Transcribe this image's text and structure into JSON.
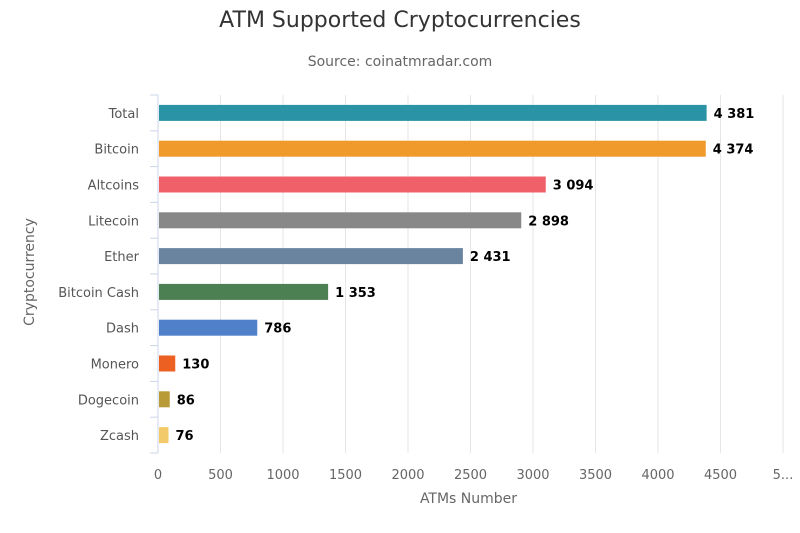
{
  "chart_data": {
    "type": "bar",
    "orientation": "horizontal",
    "title": "ATM Supported Cryptocurrencies",
    "subtitle": "Source: coinatmradar.com",
    "xlabel": "ATMs Number",
    "ylabel": "Cryptocurrency",
    "xlim": [
      0,
      5000
    ],
    "x_ticks": [
      "0",
      "500",
      "1000",
      "1500",
      "2000",
      "2500",
      "3000",
      "3500",
      "4000",
      "4500",
      "5..."
    ],
    "grid": true,
    "legend": "none",
    "categories": [
      "Total",
      "Bitcoin",
      "Altcoins",
      "Litecoin",
      "Ether",
      "Bitcoin Cash",
      "Dash",
      "Monero",
      "Dogecoin",
      "Zcash"
    ],
    "values": [
      4381,
      4374,
      3094,
      2898,
      2431,
      1353,
      786,
      130,
      86,
      76
    ],
    "value_labels": [
      "4 381",
      "4 374",
      "3 094",
      "2 898",
      "2 431",
      "1 353",
      "786",
      "130",
      "86",
      "76"
    ],
    "colors": [
      "#2a94a6",
      "#ef9a2b",
      "#ef6068",
      "#888888",
      "#6a84a0",
      "#4c8052",
      "#4f80c9",
      "#ec6022",
      "#b89a36",
      "#f2ca6a"
    ]
  }
}
